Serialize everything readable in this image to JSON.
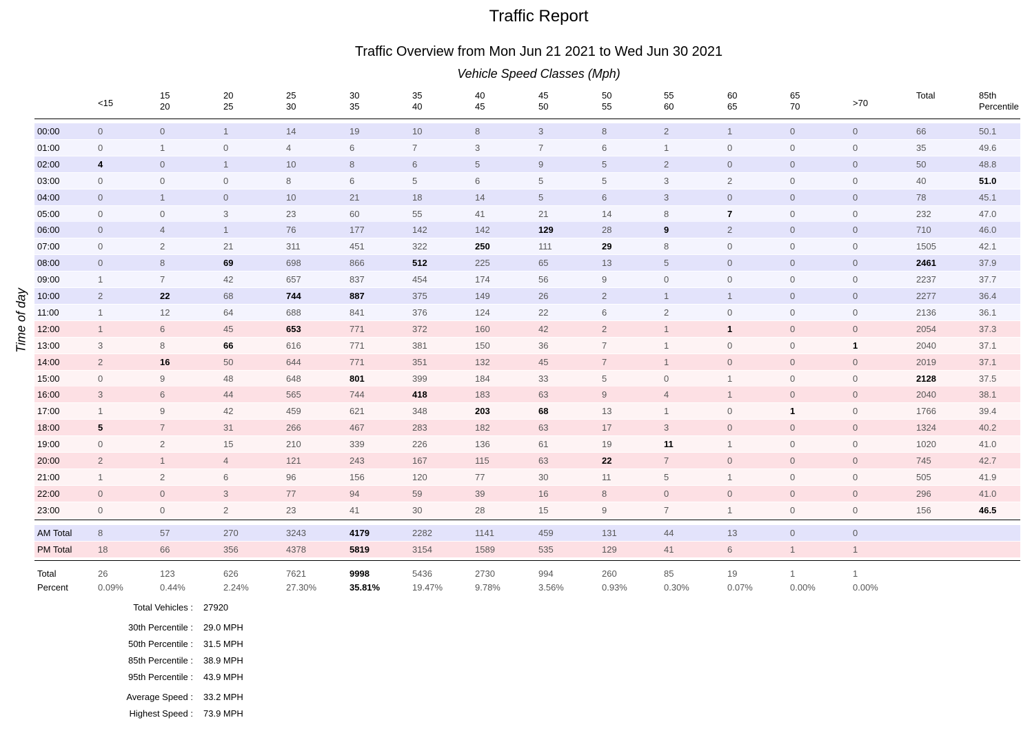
{
  "title": "Traffic Report",
  "subtitle": "Traffic Overview from Mon Jun 21 2021 to Wed Jun 30 2021",
  "group_label": "Vehicle Speed Classes (Mph)",
  "y_label": "Time of day",
  "headers": [
    [
      "<15"
    ],
    [
      "15",
      "20"
    ],
    [
      "20",
      "25"
    ],
    [
      "25",
      "30"
    ],
    [
      "30",
      "35"
    ],
    [
      "35",
      "40"
    ],
    [
      "40",
      "45"
    ],
    [
      "45",
      "50"
    ],
    [
      "50",
      "55"
    ],
    [
      "55",
      "60"
    ],
    [
      "60",
      "65"
    ],
    [
      "65",
      "70"
    ],
    [
      ">70"
    ],
    [
      "Total"
    ],
    [
      "85th",
      "Percentile"
    ]
  ],
  "rows": [
    {
      "label": "00:00",
      "values": [
        "0",
        "0",
        "1",
        "14",
        "19",
        "10",
        "8",
        "3",
        "8",
        "2",
        "1",
        "0",
        "0",
        "66",
        "50.1"
      ],
      "bold": []
    },
    {
      "label": "01:00",
      "values": [
        "0",
        "1",
        "0",
        "4",
        "6",
        "7",
        "3",
        "7",
        "6",
        "1",
        "0",
        "0",
        "0",
        "35",
        "49.6"
      ],
      "bold": []
    },
    {
      "label": "02:00",
      "values": [
        "4",
        "0",
        "1",
        "10",
        "8",
        "6",
        "5",
        "9",
        "5",
        "2",
        "0",
        "0",
        "0",
        "50",
        "48.8"
      ],
      "bold": [
        0
      ]
    },
    {
      "label": "03:00",
      "values": [
        "0",
        "0",
        "0",
        "8",
        "6",
        "5",
        "6",
        "5",
        "5",
        "3",
        "2",
        "0",
        "0",
        "40",
        "51.0"
      ],
      "bold": [
        14
      ]
    },
    {
      "label": "04:00",
      "values": [
        "0",
        "1",
        "0",
        "10",
        "21",
        "18",
        "14",
        "5",
        "6",
        "3",
        "0",
        "0",
        "0",
        "78",
        "45.1"
      ],
      "bold": []
    },
    {
      "label": "05:00",
      "values": [
        "0",
        "0",
        "3",
        "23",
        "60",
        "55",
        "41",
        "21",
        "14",
        "8",
        "7",
        "0",
        "0",
        "232",
        "47.0"
      ],
      "bold": [
        10
      ]
    },
    {
      "label": "06:00",
      "values": [
        "0",
        "4",
        "1",
        "76",
        "177",
        "142",
        "142",
        "129",
        "28",
        "9",
        "2",
        "0",
        "0",
        "710",
        "46.0"
      ],
      "bold": [
        7,
        9
      ]
    },
    {
      "label": "07:00",
      "values": [
        "0",
        "2",
        "21",
        "311",
        "451",
        "322",
        "250",
        "111",
        "29",
        "8",
        "0",
        "0",
        "0",
        "1505",
        "42.1"
      ],
      "bold": [
        6,
        8
      ]
    },
    {
      "label": "08:00",
      "values": [
        "0",
        "8",
        "69",
        "698",
        "866",
        "512",
        "225",
        "65",
        "13",
        "5",
        "0",
        "0",
        "0",
        "2461",
        "37.9"
      ],
      "bold": [
        2,
        5,
        13
      ]
    },
    {
      "label": "09:00",
      "values": [
        "1",
        "7",
        "42",
        "657",
        "837",
        "454",
        "174",
        "56",
        "9",
        "0",
        "0",
        "0",
        "0",
        "2237",
        "37.7"
      ],
      "bold": []
    },
    {
      "label": "10:00",
      "values": [
        "2",
        "22",
        "68",
        "744",
        "887",
        "375",
        "149",
        "26",
        "2",
        "1",
        "1",
        "0",
        "0",
        "2277",
        "36.4"
      ],
      "bold": [
        1,
        3,
        4
      ]
    },
    {
      "label": "11:00",
      "values": [
        "1",
        "12",
        "64",
        "688",
        "841",
        "376",
        "124",
        "22",
        "6",
        "2",
        "0",
        "0",
        "0",
        "2136",
        "36.1"
      ],
      "bold": []
    },
    {
      "label": "12:00",
      "values": [
        "1",
        "6",
        "45",
        "653",
        "771",
        "372",
        "160",
        "42",
        "2",
        "1",
        "1",
        "0",
        "0",
        "2054",
        "37.3"
      ],
      "bold": [
        3,
        10
      ]
    },
    {
      "label": "13:00",
      "values": [
        "3",
        "8",
        "66",
        "616",
        "771",
        "381",
        "150",
        "36",
        "7",
        "1",
        "0",
        "0",
        "1",
        "2040",
        "37.1"
      ],
      "bold": [
        2,
        12
      ]
    },
    {
      "label": "14:00",
      "values": [
        "2",
        "16",
        "50",
        "644",
        "771",
        "351",
        "132",
        "45",
        "7",
        "1",
        "0",
        "0",
        "0",
        "2019",
        "37.1"
      ],
      "bold": [
        1
      ]
    },
    {
      "label": "15:00",
      "values": [
        "0",
        "9",
        "48",
        "648",
        "801",
        "399",
        "184",
        "33",
        "5",
        "0",
        "1",
        "0",
        "0",
        "2128",
        "37.5"
      ],
      "bold": [
        4,
        13
      ]
    },
    {
      "label": "16:00",
      "values": [
        "3",
        "6",
        "44",
        "565",
        "744",
        "418",
        "183",
        "63",
        "9",
        "4",
        "1",
        "0",
        "0",
        "2040",
        "38.1"
      ],
      "bold": [
        5
      ]
    },
    {
      "label": "17:00",
      "values": [
        "1",
        "9",
        "42",
        "459",
        "621",
        "348",
        "203",
        "68",
        "13",
        "1",
        "0",
        "1",
        "0",
        "1766",
        "39.4"
      ],
      "bold": [
        6,
        7,
        11
      ]
    },
    {
      "label": "18:00",
      "values": [
        "5",
        "7",
        "31",
        "266",
        "467",
        "283",
        "182",
        "63",
        "17",
        "3",
        "0",
        "0",
        "0",
        "1324",
        "40.2"
      ],
      "bold": [
        0
      ]
    },
    {
      "label": "19:00",
      "values": [
        "0",
        "2",
        "15",
        "210",
        "339",
        "226",
        "136",
        "61",
        "19",
        "11",
        "1",
        "0",
        "0",
        "1020",
        "41.0"
      ],
      "bold": [
        9
      ]
    },
    {
      "label": "20:00",
      "values": [
        "2",
        "1",
        "4",
        "121",
        "243",
        "167",
        "115",
        "63",
        "22",
        "7",
        "0",
        "0",
        "0",
        "745",
        "42.7"
      ],
      "bold": [
        8
      ]
    },
    {
      "label": "21:00",
      "values": [
        "1",
        "2",
        "6",
        "96",
        "156",
        "120",
        "77",
        "30",
        "11",
        "5",
        "1",
        "0",
        "0",
        "505",
        "41.9"
      ],
      "bold": []
    },
    {
      "label": "22:00",
      "values": [
        "0",
        "0",
        "3",
        "77",
        "94",
        "59",
        "39",
        "16",
        "8",
        "0",
        "0",
        "0",
        "0",
        "296",
        "41.0"
      ],
      "bold": []
    },
    {
      "label": "23:00",
      "values": [
        "0",
        "0",
        "2",
        "23",
        "41",
        "30",
        "28",
        "15",
        "9",
        "7",
        "1",
        "0",
        "0",
        "156",
        "46.5"
      ],
      "bold": [
        14
      ]
    }
  ],
  "am_total": {
    "label": "AM Total",
    "values": [
      "8",
      "57",
      "270",
      "3243",
      "4179",
      "2282",
      "1141",
      "459",
      "131",
      "44",
      "13",
      "0",
      "0"
    ],
    "bold": [
      4
    ]
  },
  "pm_total": {
    "label": "PM Total",
    "values": [
      "18",
      "66",
      "356",
      "4378",
      "5819",
      "3154",
      "1589",
      "535",
      "129",
      "41",
      "6",
      "1",
      "1"
    ],
    "bold": [
      4
    ]
  },
  "total": {
    "label": "Total",
    "values": [
      "26",
      "123",
      "626",
      "7621",
      "9998",
      "5436",
      "2730",
      "994",
      "260",
      "85",
      "19",
      "1",
      "1"
    ],
    "bold": [
      4
    ]
  },
  "percent": {
    "label": "Percent",
    "values": [
      "0.09%",
      "0.44%",
      "2.24%",
      "27.30%",
      "35.81%",
      "19.47%",
      "9.78%",
      "3.56%",
      "0.93%",
      "0.30%",
      "0.07%",
      "0.00%",
      "0.00%"
    ],
    "bold": [
      4
    ]
  },
  "stats": [
    {
      "key": "Total Vehicles :",
      "value": "27920"
    },
    {
      "key": "30th Percentile :",
      "value": "29.0 MPH"
    },
    {
      "key": "50th Percentile :",
      "value": "31.5 MPH"
    },
    {
      "key": "85th Percentile :",
      "value": "38.9 MPH"
    },
    {
      "key": "95th Percentile :",
      "value": "43.9 MPH"
    },
    {
      "key": "Average Speed :",
      "value": "33.2 MPH"
    },
    {
      "key": "Highest Speed :",
      "value": "73.9 MPH"
    }
  ],
  "colors": {
    "am_dark": "#e3e3fb",
    "am_light": "#f4f4fe",
    "pm_dark": "#fde0e4",
    "pm_light": "#fef3f4"
  }
}
